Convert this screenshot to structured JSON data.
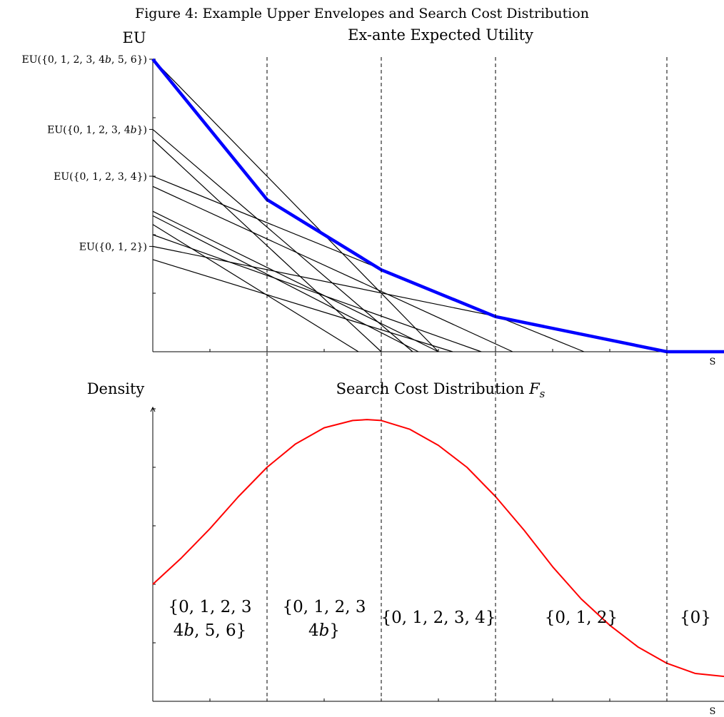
{
  "figure_title": "Figure 4: Example Upper Envelopes and Search Cost Distribution",
  "chart_data": [
    {
      "type": "line",
      "title": "Ex-ante Expected Utility",
      "ylabel": "EU",
      "xlabel": "S",
      "xlim": [
        0,
        10
      ],
      "ylim": [
        0,
        10
      ],
      "y_tick_labels": [
        {
          "y": 10.0,
          "label": "EU({0, 1, 2, 3, 4b, 5, 6})"
        },
        {
          "y": 7.6,
          "label": "EU({0, 1, 2, 3, 4b})"
        },
        {
          "y": 6.0,
          "label": "EU({0, 1, 2, 3, 4})"
        },
        {
          "y": 3.6,
          "label": "EU({0, 1, 2})"
        }
      ],
      "series": [
        {
          "values": [
            [
              0,
              10.0
            ],
            [
              5.0,
              0
            ]
          ]
        },
        {
          "values": [
            [
              0,
              7.6
            ],
            [
              4.55,
              0
            ]
          ]
        },
        {
          "values": [
            [
              0,
              7.25
            ],
            [
              4.0,
              0
            ]
          ]
        },
        {
          "values": [
            [
              0,
              6.0
            ],
            [
              7.55,
              0
            ]
          ]
        },
        {
          "values": [
            [
              0,
              5.65
            ],
            [
              6.3,
              0
            ]
          ]
        },
        {
          "values": [
            [
              0,
              4.8
            ],
            [
              5.0,
              0
            ]
          ]
        },
        {
          "values": [
            [
              0,
              4.65
            ],
            [
              4.65,
              0
            ]
          ]
        },
        {
          "values": [
            [
              0,
              4.35
            ],
            [
              3.6,
              0
            ]
          ]
        },
        {
          "values": [
            [
              0,
              4.0
            ],
            [
              5.75,
              0
            ]
          ]
        },
        {
          "values": [
            [
              0,
              3.6
            ],
            [
              9.05,
              0
            ]
          ]
        },
        {
          "values": [
            [
              0,
              3.15
            ],
            [
              5.25,
              0
            ]
          ]
        }
      ],
      "upper_envelope": {
        "color": "#0000ff",
        "values": [
          [
            0,
            10.0
          ],
          [
            2.0,
            5.2
          ],
          [
            4.0,
            2.8
          ],
          [
            6.0,
            1.2
          ],
          [
            9.0,
            0
          ],
          [
            10.0,
            0
          ]
        ]
      },
      "vertical_dashed_lines_x": [
        2.0,
        4.0,
        6.0,
        9.0
      ],
      "grid": false
    },
    {
      "type": "line",
      "title": "Search Cost Distribution F_s",
      "ylabel": "Density",
      "xlabel": "S",
      "xlim": [
        0,
        10
      ],
      "ylim": [
        0,
        10
      ],
      "series": [
        {
          "color": "#ff0000",
          "x": [
            0,
            0.5,
            1,
            1.5,
            2,
            2.5,
            3,
            3.5,
            3.75,
            4,
            4.5,
            5,
            5.5,
            6,
            6.5,
            7,
            7.5,
            8,
            8.5,
            9,
            9.5,
            10
          ],
          "values": [
            4.0,
            4.9,
            5.9,
            7.0,
            8.0,
            8.8,
            9.35,
            9.6,
            9.63,
            9.6,
            9.3,
            8.75,
            8.0,
            7.0,
            5.85,
            4.6,
            3.5,
            2.6,
            1.85,
            1.3,
            0.95,
            0.85
          ]
        }
      ],
      "region_labels": [
        {
          "lines": [
            "{0, 1, 2, 3",
            "4b, 5, 6}"
          ]
        },
        {
          "lines": [
            "{0, 1, 2, 3",
            "4b}"
          ]
        },
        {
          "lines": [
            "{0, 1, 2, 3, 4}"
          ]
        },
        {
          "lines": [
            "{0, 1, 2}"
          ]
        },
        {
          "lines": [
            "{0}"
          ]
        }
      ],
      "vertical_dashed_lines_x": [
        2.0,
        4.0,
        6.0,
        9.0
      ],
      "grid": false
    }
  ]
}
